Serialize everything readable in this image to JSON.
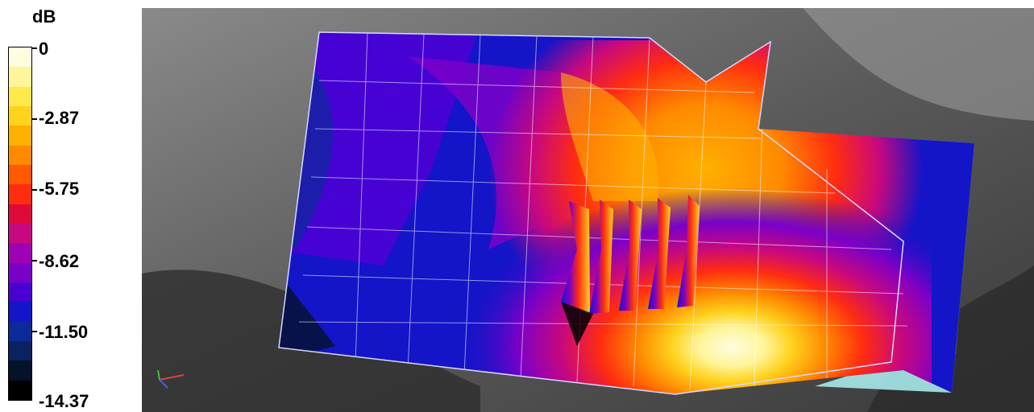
{
  "legend": {
    "unit": "dB",
    "ticks": [
      "0",
      "-2.87",
      "-5.75",
      "-8.62",
      "-11.50",
      "-14.37"
    ],
    "colors": [
      "#fffde0",
      "#fff59a",
      "#ffe84a",
      "#ffd21e",
      "#ffb000",
      "#ff8a00",
      "#ff5a00",
      "#ff2c10",
      "#e00a3a",
      "#c8087e",
      "#a000b4",
      "#7a00c8",
      "#4a00d4",
      "#1414c8",
      "#0c2a9a",
      "#0a2260",
      "#04122a",
      "#000000"
    ]
  },
  "scene": {
    "triad_icon": "axis-triad-icon"
  }
}
